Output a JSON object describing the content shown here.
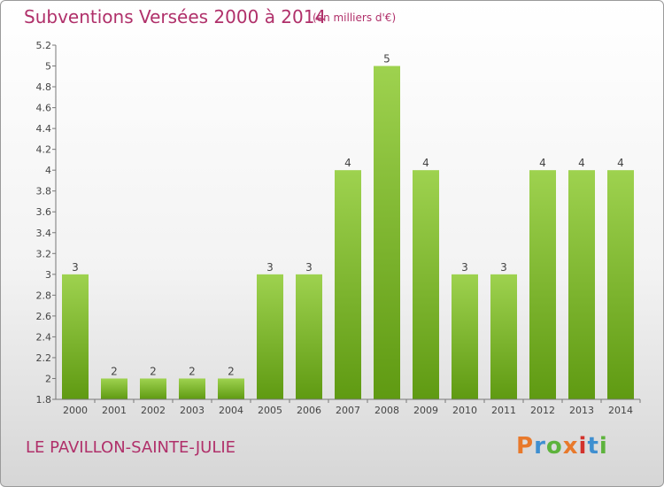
{
  "header": {
    "title": "Subventions Versées 2000 à 2014",
    "unit": "(en milliers d'€)"
  },
  "footer": {
    "commune": "LE PAVILLON-SAINTE-JULIE",
    "logo_text": "Proxiti"
  },
  "colors": {
    "title": "#b0306a",
    "bar_light": "#9ed24f",
    "bar_dark": "#5f9a12",
    "logo_letters": [
      "#e8792b",
      "#3f8fd0",
      "#5db33c",
      "#e8792b",
      "#d2322c",
      "#3f8fd0",
      "#5db33c"
    ]
  },
  "chart_data": {
    "type": "bar",
    "title": "Subventions Versées 2000 à 2014",
    "xlabel": "",
    "ylabel": "",
    "categories": [
      "2000",
      "2001",
      "2002",
      "2003",
      "2004",
      "2005",
      "2006",
      "2007",
      "2008",
      "2009",
      "2010",
      "2011",
      "2012",
      "2013",
      "2014"
    ],
    "values": [
      3,
      2,
      2,
      2,
      2,
      3,
      3,
      4,
      5,
      4,
      3,
      3,
      4,
      4,
      4
    ],
    "data_labels": [
      "3",
      "2",
      "2",
      "2",
      "2",
      "3",
      "3",
      "4",
      "5",
      "4",
      "3",
      "3",
      "4",
      "4",
      "4"
    ],
    "y_ticks": [
      {
        "value": 1.8,
        "label": "1.8"
      },
      {
        "value": 2,
        "label": "2"
      },
      {
        "value": 2.2,
        "label": "2.2"
      },
      {
        "value": 2.4,
        "label": "2.4"
      },
      {
        "value": 2.6,
        "label": "2.6"
      },
      {
        "value": 2.8,
        "label": "2.8"
      },
      {
        "value": 3,
        "label": "3"
      },
      {
        "value": 3.2,
        "label": "3.2"
      },
      {
        "value": 3.4,
        "label": "3.4"
      },
      {
        "value": 3.6,
        "label": "3.6"
      },
      {
        "value": 3.8,
        "label": "3.8"
      },
      {
        "value": 4,
        "label": "4"
      },
      {
        "value": 4.2,
        "label": "4.2"
      },
      {
        "value": 4.4,
        "label": "4.4"
      },
      {
        "value": 4.6,
        "label": "4.6"
      },
      {
        "value": 4.8,
        "label": "4.8"
      },
      {
        "value": 5,
        "label": "5"
      },
      {
        "value": 5.2,
        "label": "5.2"
      }
    ],
    "ylim": [
      1.8,
      5.2
    ],
    "grid": false,
    "legend": "none"
  }
}
